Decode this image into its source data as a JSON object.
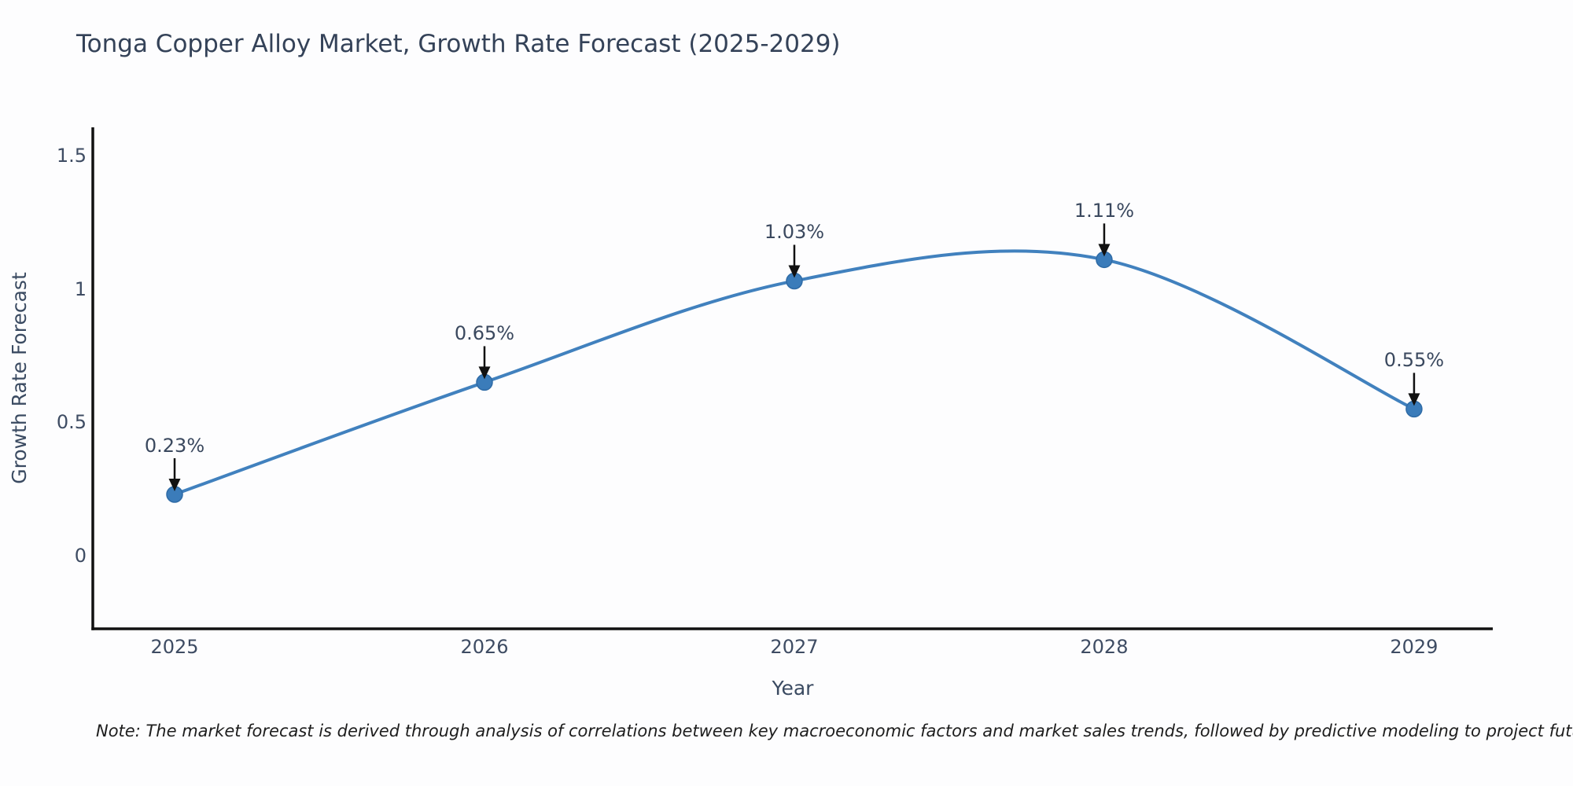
{
  "page": {
    "title": "Tonga Copper Alloy Market, Growth Rate Forecast (2025-2029)",
    "note": "Note: The market forecast is derived through analysis of correlations between key macroeconomic factors and market sales trends, followed by predictive modeling to project future sales"
  },
  "chart_data": {
    "type": "line",
    "title": "Tonga Copper Alloy Market, Growth Rate Forecast (2025-2029)",
    "xlabel": "Year",
    "ylabel": "Growth Rate Forecast",
    "x": [
      2025,
      2026,
      2027,
      2028,
      2029
    ],
    "values": [
      0.23,
      0.65,
      1.03,
      1.11,
      0.55
    ],
    "point_labels": [
      "0.23%",
      "0.65%",
      "1.03%",
      "1.11%",
      "0.55%"
    ],
    "xtick_labels": [
      "2025",
      "2026",
      "2027",
      "2028",
      "2029"
    ],
    "yticks": [
      0,
      0.5,
      1,
      1.5
    ],
    "ytick_labels": [
      "0",
      "0.5",
      "1",
      "1.5"
    ],
    "xlim": [
      2024.736,
      2029.254
    ],
    "ylim": [
      -0.274,
      1.606
    ],
    "line_shape": "spline",
    "grid": false,
    "legend": "none",
    "annotation_note": "each point labeled with percent value and a downward black arrow",
    "colors": {
      "line": "#4181be",
      "marker": "#3b7cba",
      "marker_edge": "#2f6ba6",
      "arrow": "#111111",
      "axis": "#111111",
      "title_text": "#344258",
      "tick_text": "#3e4c63",
      "note_text": "#1d1d1d",
      "background": "#fdfdfe"
    }
  }
}
